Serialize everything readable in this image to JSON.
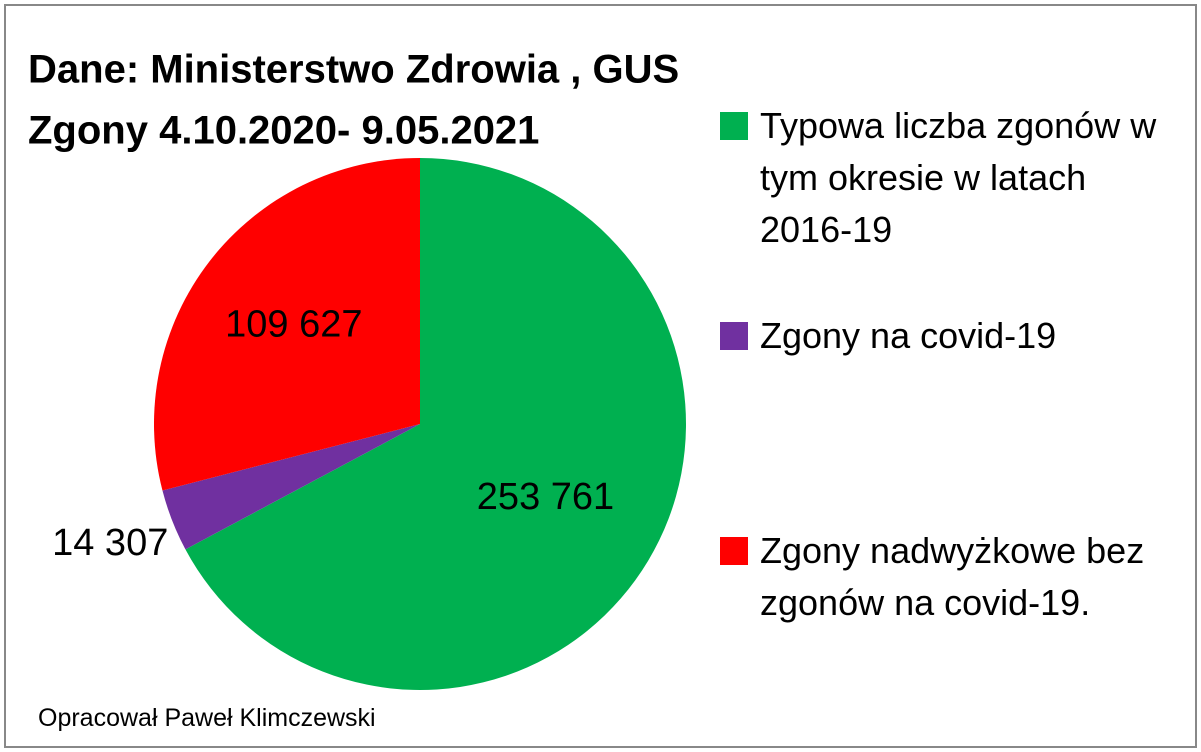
{
  "chart_data": {
    "type": "pie",
    "title": "Dane: Ministerstwo Zdrowia , GUS",
    "subtitle": "Zgony 4.10.2020- 9.05.2021",
    "note": "Opracował Paweł Klimczewski",
    "series": [
      {
        "name": "Typowa liczba zgonów w tym okresie w latach 2016-19",
        "color": "#00b050",
        "values": [
          253761
        ],
        "value_labels": [
          "253 761"
        ]
      },
      {
        "name": "Zgony  na covid-19",
        "color": "#7030a0",
        "values": [
          14307
        ],
        "value_labels": [
          "14 307"
        ]
      },
      {
        "name": "Zgony nadwyżkowe bez zgonów na covid-19.",
        "color": "#ff0000",
        "values": [
          109627
        ],
        "value_labels": [
          "109 627"
        ]
      }
    ]
  }
}
